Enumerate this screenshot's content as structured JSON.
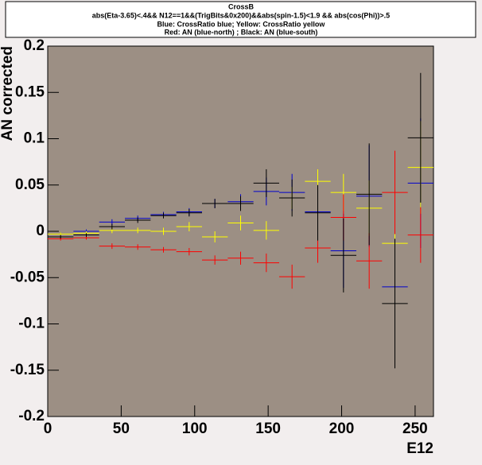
{
  "chart_data": {
    "type": "errorbar",
    "title": "CrossB",
    "subtitle": [
      "abs(Eta-3.65)<.4&& N12==1&&(TrigBits&0x200)&&abs(spin-1.5)<1.9 && abs(cos(Phi))>.5",
      "Blue: CrossRatio blue;  Yellow: CrossRatio yellow",
      "Red: AN (blue-north) ;  Black: AN (blue-south)"
    ],
    "x_label": "E12",
    "y_label": "AN corrected",
    "x": [
      8.75,
      26.25,
      43.75,
      61.25,
      78.75,
      96.25,
      113.75,
      131.25,
      148.75,
      166.25,
      183.75,
      201.25,
      218.75,
      236.25,
      253.75
    ],
    "xerr": 8.75,
    "series": [
      {
        "name": "CrossRatio blue",
        "color": "#0000cc",
        "values": [
          -0.003,
          0.0,
          0.01,
          0.014,
          0.018,
          0.021,
          0.03,
          0.032,
          0.043,
          0.042,
          0.021,
          -0.021,
          0.038,
          -0.06,
          0.052
        ],
        "errors": [
          0.002,
          0.002,
          0.003,
          0.003,
          0.003,
          0.004,
          0.005,
          0.008,
          0.015,
          0.02,
          0.03,
          0.04,
          0.055,
          0.07,
          0.07
        ]
      },
      {
        "name": "CrossRatio yellow",
        "color": "#ffff00",
        "values": [
          -0.003,
          -0.002,
          0.001,
          0.001,
          0.0,
          0.005,
          -0.006,
          0.009,
          0.001,
          0.036,
          0.054,
          0.042,
          0.025,
          -0.013,
          0.069
        ],
        "errors": [
          0.002,
          0.002,
          0.003,
          0.003,
          0.004,
          0.005,
          0.006,
          0.008,
          0.01,
          0.012,
          0.013,
          0.02,
          0.03,
          0.04,
          0.05
        ]
      },
      {
        "name": "AN (blue-north)",
        "color": "#ff0000",
        "values": [
          -0.008,
          -0.007,
          -0.016,
          -0.017,
          -0.02,
          -0.022,
          -0.031,
          -0.029,
          -0.034,
          -0.049,
          -0.018,
          0.015,
          -0.032,
          0.042,
          -0.004
        ],
        "errors": [
          0.002,
          0.002,
          0.003,
          0.003,
          0.003,
          0.004,
          0.005,
          0.007,
          0.01,
          0.013,
          0.016,
          0.025,
          0.03,
          0.045,
          0.03
        ]
      },
      {
        "name": "AN (blue-south)",
        "color": "#000000",
        "values": [
          -0.006,
          -0.004,
          0.005,
          0.012,
          0.017,
          0.02,
          0.03,
          0.03,
          0.052,
          0.036,
          0.02,
          -0.026,
          0.04,
          -0.078,
          0.101
        ],
        "errors": [
          0.002,
          0.002,
          0.003,
          0.003,
          0.003,
          0.004,
          0.005,
          0.008,
          0.015,
          0.02,
          0.03,
          0.04,
          0.055,
          0.07,
          0.07
        ]
      }
    ],
    "xlim": [
      0,
      262.5
    ],
    "ylim": [
      -0.2,
      0.2
    ],
    "xticks": [
      0,
      50,
      100,
      150,
      200,
      250
    ],
    "yticks": [
      0.2,
      0.15,
      0.1,
      0.05,
      0,
      -0.05,
      -0.1,
      -0.15,
      -0.2
    ],
    "frame_color": "#9c8f84"
  }
}
